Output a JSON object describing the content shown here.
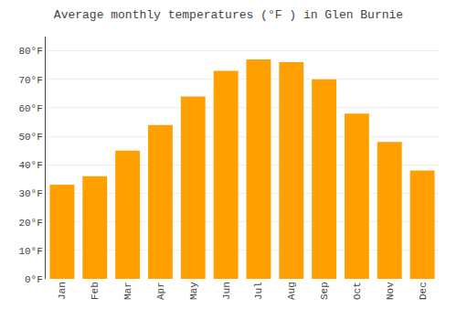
{
  "chart_data": {
    "type": "bar",
    "title": "Average monthly temperatures (°F ) in Glen Burnie",
    "categories": [
      "Jan",
      "Feb",
      "Mar",
      "Apr",
      "May",
      "Jun",
      "Jul",
      "Aug",
      "Sep",
      "Oct",
      "Nov",
      "Dec"
    ],
    "values": [
      33,
      36,
      45,
      54,
      64,
      73,
      77,
      76,
      70,
      58,
      48,
      38
    ],
    "color": "#FFA000",
    "ylim": [
      0,
      85
    ],
    "yticks": [
      {
        "value": 0,
        "label": "0°F"
      },
      {
        "value": 10,
        "label": "10°F"
      },
      {
        "value": 20,
        "label": "20°F"
      },
      {
        "value": 30,
        "label": "30°F"
      },
      {
        "value": 40,
        "label": "40°F"
      },
      {
        "value": 50,
        "label": "50°F"
      },
      {
        "value": 60,
        "label": "60°F"
      },
      {
        "value": 70,
        "label": "70°F"
      },
      {
        "value": 80,
        "label": "80°F"
      }
    ],
    "grid": true
  }
}
